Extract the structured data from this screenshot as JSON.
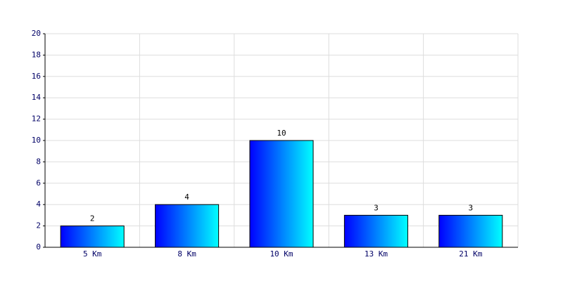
{
  "chart_data": {
    "type": "bar",
    "categories": [
      "5 Km",
      "8 Km",
      "10 Km",
      "13 Km",
      "21 Km"
    ],
    "values": [
      2,
      4,
      10,
      3,
      3
    ],
    "gradient": [
      "#0000ff",
      "#00ffff"
    ],
    "ylim": [
      0,
      20
    ],
    "yticks": [
      0,
      2,
      4,
      6,
      8,
      10,
      12,
      14,
      16,
      18,
      20
    ],
    "grid": true
  }
}
